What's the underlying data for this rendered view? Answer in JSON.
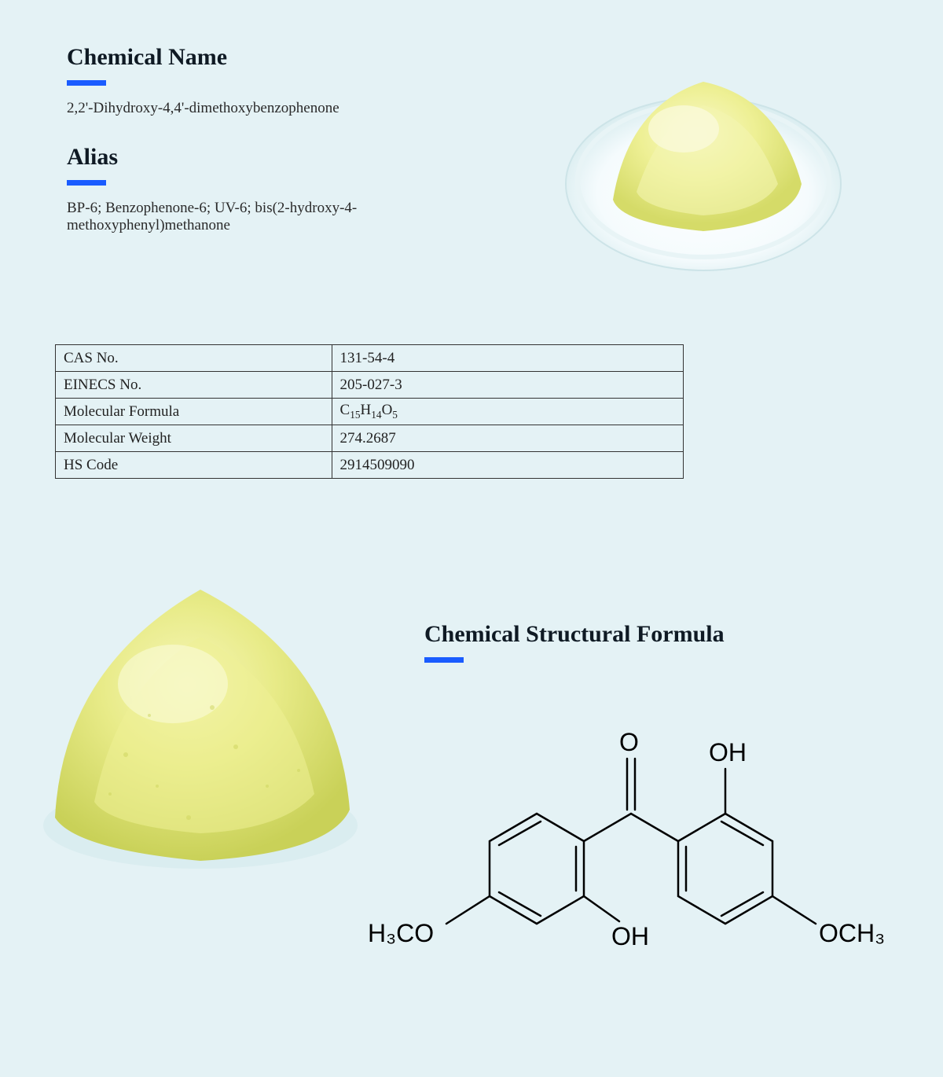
{
  "sections": {
    "chemical_name": {
      "title": "Chemical Name",
      "value": "2,2'-Dihydroxy-4,4'-dimethoxybenzophenone"
    },
    "alias": {
      "title": "Alias",
      "value": "BP-6; Benzophenone-6; UV-6; bis(2-hydroxy-4-methoxyphenyl)methanone"
    },
    "structural_formula": {
      "title": "Chemical Structural Formula"
    }
  },
  "table": {
    "rows": [
      {
        "label": "CAS No.",
        "value": "131-54-4"
      },
      {
        "label": "EINECS No.",
        "value": "205-027-3"
      },
      {
        "label": "Molecular Formula",
        "value_html": "C<sub>15</sub>H<sub>14</sub>O<sub>5</sub>",
        "value": "C15H14O5"
      },
      {
        "label": "Molecular Weight",
        "value": "274.2687"
      },
      {
        "label": "HS Code",
        "value": "2914509090"
      }
    ]
  },
  "styling": {
    "background_color": "#e4f2f5",
    "accent_color": "#1a5cff",
    "title_fontsize": 30,
    "body_fontsize": 19,
    "text_color": "#222222",
    "underline_width": 50,
    "underline_height": 7,
    "table_border_color": "#333333",
    "powder_color_light": "#f2f3a8",
    "powder_color_dark": "#d8de6a"
  },
  "structure": {
    "type": "molecule",
    "labels": {
      "oh1": "OH",
      "oh2": "OH",
      "o": "O",
      "left_methoxy": "H₃CO",
      "right_methoxy": "OCH₃"
    },
    "bond_color": "#000000",
    "bond_width": 2,
    "label_fontsize": 30
  },
  "images": {
    "powder_description": "pale yellow-green fine powder"
  }
}
